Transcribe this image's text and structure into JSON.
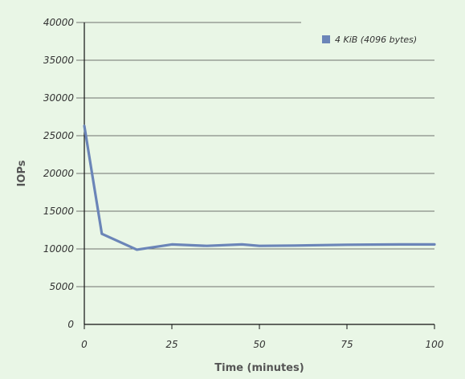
{
  "chart_data": {
    "type": "line",
    "title": "",
    "xlabel": "Time (minutes)",
    "ylabel": "IOPs",
    "xlim": [
      0,
      100
    ],
    "ylim": [
      0,
      40000
    ],
    "x_ticks": [
      0,
      25,
      50,
      75,
      100
    ],
    "y_ticks": [
      0,
      5000,
      10000,
      15000,
      20000,
      25000,
      30000,
      35000,
      40000
    ],
    "grid": "horizontal",
    "legend_position": "top-right",
    "series": [
      {
        "name": "4 KiB (4096 bytes)",
        "color": "#6b85b8",
        "x": [
          0,
          5,
          15,
          25,
          35,
          45,
          50,
          60,
          75,
          90,
          100
        ],
        "y": [
          26300,
          12000,
          9900,
          10600,
          10400,
          10600,
          10400,
          10450,
          10550,
          10600,
          10600
        ]
      }
    ]
  }
}
